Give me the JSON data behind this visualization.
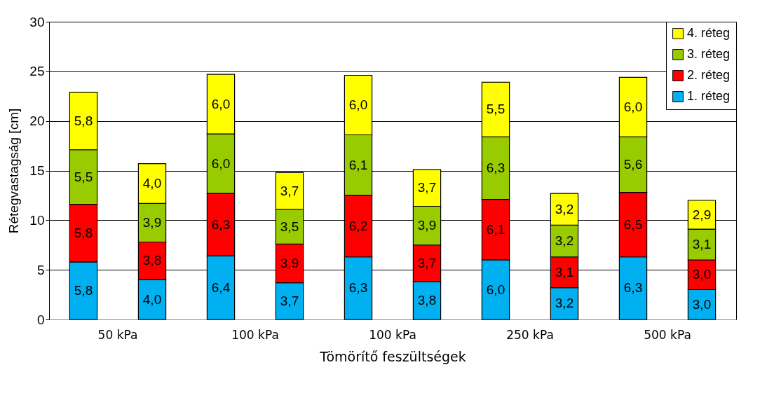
{
  "chart_data": {
    "type": "bar",
    "stacked": true,
    "xlabel": "Tömörítő feszültségek",
    "ylabel": "Rétegvastagság [cm]",
    "categories": [
      "50 kPa",
      null,
      "100 kPa",
      null,
      "100 kPa",
      null,
      "250 kPa",
      null,
      "500 kPa",
      null
    ],
    "ylim": [
      0,
      30
    ],
    "yticks": [
      0,
      5,
      10,
      15,
      20,
      25,
      30
    ],
    "grid": "y",
    "legend": "top right",
    "series": [
      {
        "name": "1. réteg",
        "color": "#00b0f0",
        "values": [
          5.8,
          4.0,
          6.4,
          3.7,
          6.3,
          3.8,
          6.0,
          3.2,
          6.3,
          3.0
        ],
        "value_labels": [
          "5,8",
          "4,0",
          "6,4",
          "3,7",
          "6,3",
          "3,8",
          "6,0",
          "3,2",
          "6,3",
          "3,0"
        ]
      },
      {
        "name": "2. réteg",
        "color": "#ff0000",
        "values": [
          5.8,
          3.8,
          6.3,
          3.9,
          6.2,
          3.7,
          6.1,
          3.1,
          6.5,
          3.0
        ],
        "value_labels": [
          "5,8",
          "3,8",
          "6,3",
          "3,9",
          "6,2",
          "3,7",
          "6,1",
          "3,1",
          "6,5",
          "3,0"
        ]
      },
      {
        "name": "3. réteg",
        "color": "#99cc00",
        "values": [
          5.5,
          3.9,
          6.0,
          3.5,
          6.1,
          3.9,
          6.3,
          3.2,
          5.6,
          3.1
        ],
        "value_labels": [
          "5,5",
          "3,9",
          "6,0",
          "3,5",
          "6,1",
          "3,9",
          "6,3",
          "3,2",
          "5,6",
          "3,1"
        ]
      },
      {
        "name": "4. réteg",
        "color": "#ffff00",
        "values": [
          5.8,
          4.0,
          6.0,
          3.7,
          6.0,
          3.7,
          5.5,
          3.2,
          6.0,
          2.9
        ],
        "value_labels": [
          "5,8",
          "4,0",
          "6,0",
          "3,7",
          "6,0",
          "3,7",
          "5,5",
          "3,2",
          "6,0",
          "2,9"
        ]
      }
    ]
  }
}
